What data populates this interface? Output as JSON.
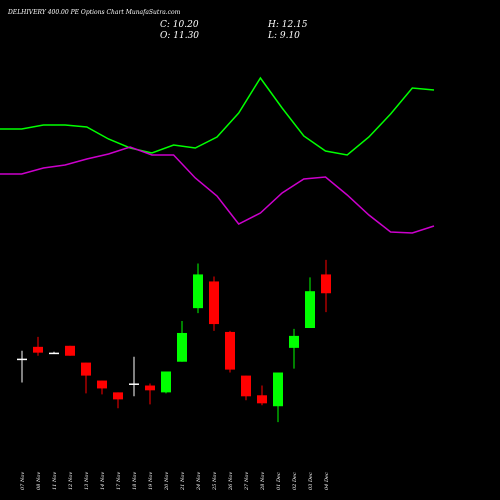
{
  "chart_data": [
    {
      "type": "candlestick",
      "title": "DELHIVERY 400.00 PE Options Chart MunafaSutra.com",
      "close_label": "C: 10.20",
      "high_label": "H: 12.15",
      "open_label": "O: 11.30",
      "low_label": "L: 9.10",
      "categories": [
        "07 Nov",
        "08 Nov",
        "11 Nov",
        "12 Nov",
        "13 Nov",
        "14 Nov",
        "17 Nov",
        "18 Nov",
        "19 Nov",
        "20 Nov",
        "21 Nov",
        "24 Nov",
        "25 Nov",
        "26 Nov",
        "27 Nov",
        "28 Nov",
        "01 Dec",
        "02 Dec",
        "03 Dec",
        "04 Dec"
      ],
      "open": [
        6.38,
        7.07,
        6.73,
        7.13,
        6.15,
        5.1,
        4.41,
        4.93,
        4.81,
        4.41,
        6.2,
        9.33,
        10.89,
        7.94,
        5.39,
        4.24,
        3.6,
        7.01,
        8.17,
        11.3
      ],
      "high": [
        6.84,
        7.65,
        6.78,
        7.13,
        6.15,
        5.1,
        4.41,
        6.49,
        4.93,
        5.63,
        8.58,
        11.94,
        11.18,
        8.0,
        5.39,
        4.81,
        5.57,
        8.12,
        11.13,
        12.15
      ],
      "low": [
        4.99,
        6.55,
        6.7,
        6.55,
        4.35,
        4.29,
        3.48,
        4.18,
        3.71,
        4.35,
        6.2,
        9.04,
        8.0,
        5.57,
        3.95,
        3.66,
        2.67,
        5.8,
        8.17,
        9.1
      ],
      "close": [
        6.38,
        6.73,
        6.73,
        6.55,
        5.39,
        4.64,
        4.0,
        4.93,
        4.53,
        5.63,
        7.88,
        11.3,
        8.4,
        5.74,
        4.18,
        3.77,
        5.57,
        7.71,
        10.32,
        10.2
      ],
      "up_color": "#00ff00",
      "down_color": "#ff0000",
      "doji_color": "#ffffff",
      "ylim": [
        2.2,
        13.2
      ]
    },
    {
      "type": "line",
      "x": [
        0,
        1,
        2,
        3,
        4,
        5,
        6,
        7,
        8,
        9,
        10,
        11,
        12,
        13,
        14,
        15,
        16,
        17,
        18,
        19,
        20
      ],
      "xlim": [
        0,
        20
      ],
      "series": [
        {
          "color": "#00ff00",
          "values": [
            111,
            111,
            115,
            115,
            113,
            101,
            92,
            87,
            95,
            92,
            103,
            127,
            162,
            132,
            104,
            89,
            85,
            103,
            126,
            152,
            150
          ]
        },
        {
          "color": "#cc00cc",
          "values": [
            66,
            66,
            72,
            75,
            81,
            86,
            93,
            85,
            85,
            62,
            44,
            16,
            27,
            47,
            61,
            63,
            45,
            25,
            8,
            7,
            14
          ]
        }
      ],
      "ylim": [
        0,
        180
      ]
    }
  ]
}
